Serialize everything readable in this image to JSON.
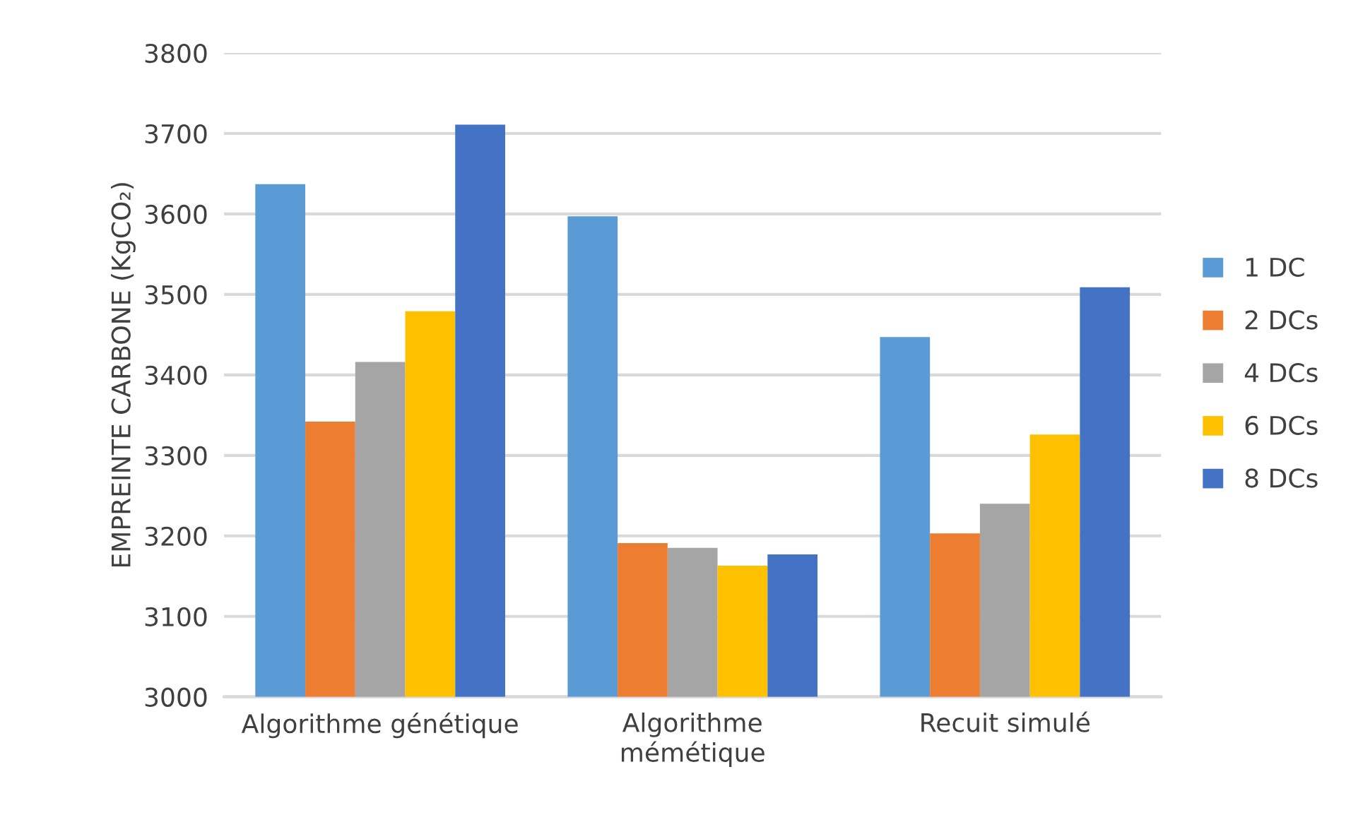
{
  "chart_data": {
    "type": "bar",
    "categories": [
      "Algorithme génétique",
      "Algorithme\nmémétique",
      "Recuit simulé"
    ],
    "ylabel": "EMPREINTE CARBONE (KgCO₂)",
    "series": [
      {
        "name": "1 DC",
        "color": "#5b9bd5",
        "values": [
          3637,
          3597,
          3447
        ]
      },
      {
        "name": "2 DCs",
        "color": "#ed7d31",
        "values": [
          3342,
          3191,
          3203
        ]
      },
      {
        "name": "4 DCs",
        "color": "#a5a5a5",
        "values": [
          3416,
          3185,
          3240
        ]
      },
      {
        "name": "6 DCs",
        "color": "#ffc000",
        "values": [
          3479,
          3163,
          3326
        ]
      },
      {
        "name": "8 DCs",
        "color": "#4472c4",
        "values": [
          3711,
          3177,
          3509
        ]
      }
    ],
    "ylim": [
      3000,
      3800
    ],
    "yticks": [
      3000,
      3100,
      3200,
      3300,
      3400,
      3500,
      3600,
      3700,
      3800
    ],
    "grid": "y",
    "legend": "right"
  }
}
